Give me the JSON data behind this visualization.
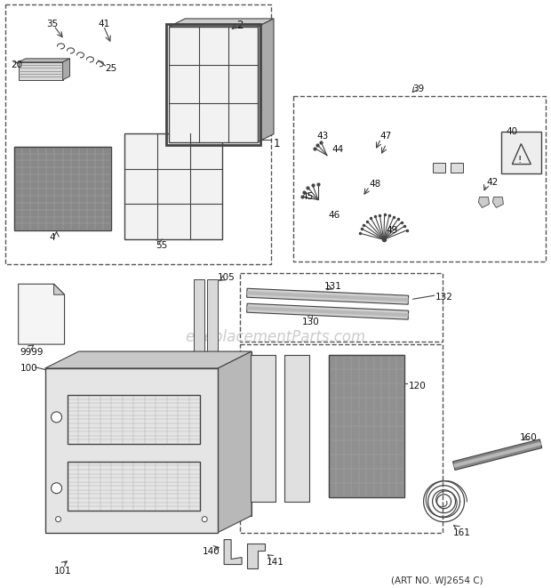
{
  "art_no": "(ART NO. WJ2654 C)",
  "watermark": "eReplacementParts.com",
  "bg_color": "#ffffff",
  "lc": "#444444",
  "fs": 7.5
}
